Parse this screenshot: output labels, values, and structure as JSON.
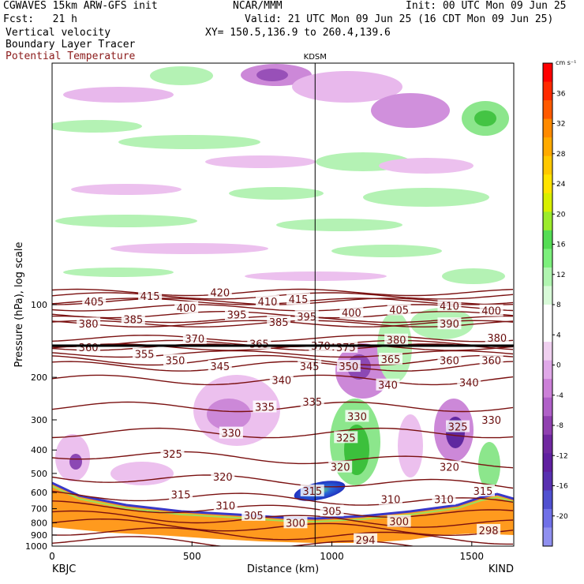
{
  "header": {
    "model": "CGWAVES 15km ARW-GFS init",
    "org": "NCAR/MMM",
    "init": "Init: 00 UTC Mon 09 Jun 25",
    "fcst": "Fcst:   21 h",
    "valid": "Valid: 21 UTC Mon 09 Jun 25 (16 CDT Mon 09 Jun 25)",
    "field1": "Vertical velocity",
    "xy": "XY= 150.5,136.9 to 260.4,139.6",
    "field2": "Boundary Layer Tracer",
    "field3": "Potential Temperature"
  },
  "chart_data": {
    "type": "heatmap",
    "xlabel": "Distance (km)",
    "ylabel": "Pressure (hPa), log scale",
    "xlim": [
      0,
      1650
    ],
    "ylim_pressure_hpa": [
      1000,
      10
    ],
    "y_scale": "log",
    "x_ticks": [
      0,
      500,
      1000,
      1500
    ],
    "y_ticks": [
      100,
      200,
      300,
      400,
      500,
      600,
      700,
      800,
      900,
      1000
    ],
    "station_left": "KBJC",
    "station_right": "KIND",
    "vertical_marker": {
      "label": "KDSM",
      "x_km": 940
    },
    "colorbar": {
      "unit": "cm s⁻¹",
      "labels": [
        36,
        32,
        28,
        24,
        20,
        16,
        12,
        8,
        4,
        0,
        -4,
        -8,
        -12,
        -16,
        -20
      ],
      "colors": [
        "#ff0000",
        "#ff2a00",
        "#ff5a00",
        "#ff8a00",
        "#ffaa00",
        "#ffc800",
        "#ffe400",
        "#d8f000",
        "#9cec2c",
        "#55dd55",
        "#7cf07c",
        "#b0f5b0",
        "#d8fad8",
        "#ffffff",
        "#ffffff",
        "#f0d0f0",
        "#e0a8e8",
        "#cc80d8",
        "#b060c8",
        "#9040b0",
        "#7028a0",
        "#6020a0",
        "#5830b0",
        "#5050d0",
        "#7070e8",
        "#9090f0"
      ]
    },
    "theta_contours": [
      {
        "value": 298,
        "label_x_km": 1560,
        "p_hpa": 860
      },
      {
        "value": 294,
        "label_x_km": 1120,
        "p_hpa": 940
      },
      {
        "value": 300,
        "label": "300",
        "label_x_km": 870,
        "p_hpa": 800
      },
      {
        "value": 305,
        "label_x_km": 720,
        "p_hpa": 745
      },
      {
        "value": 310,
        "label_x_km": 620,
        "p_hpa": 680
      },
      {
        "value": 315,
        "label_x_km": 460,
        "p_hpa": 610
      },
      {
        "value": 320,
        "label_x_km": 610,
        "p_hpa": 515
      },
      {
        "value": 325,
        "label_x_km": 430,
        "p_hpa": 415
      },
      {
        "value": 330,
        "label_x_km": 640,
        "p_hpa": 340
      },
      {
        "value": 335,
        "label_x_km": 760,
        "p_hpa": 265
      },
      {
        "value": 340,
        "label_x_km": 820,
        "p_hpa": 205
      },
      {
        "value": 345,
        "label_x_km": 600,
        "p_hpa": 180
      },
      {
        "value": 350,
        "label_x_km": 440,
        "p_hpa": 170
      },
      {
        "value": 355,
        "label_x_km": 330,
        "p_hpa": 160
      },
      {
        "value": 360,
        "label_x_km": 130,
        "p_hpa": 150
      },
      {
        "value": 365,
        "label_x_km": 740,
        "p_hpa": 145
      },
      {
        "value": 370,
        "label_x_km": 510,
        "p_hpa": 138
      },
      {
        "value": 375,
        "label_x_km": 1050,
        "p_hpa": 150
      },
      {
        "value": 380,
        "label_x_km": 130,
        "p_hpa": 120
      },
      {
        "value": 385,
        "label_x_km": 290,
        "p_hpa": 115
      },
      {
        "value": 390,
        "label_x_km": 1420,
        "p_hpa": 120
      },
      {
        "value": 395,
        "label_x_km": 660,
        "p_hpa": 110
      },
      {
        "value": 400,
        "label_x_km": 480,
        "p_hpa": 103
      },
      {
        "value": 405,
        "label_x_km": 150,
        "p_hpa": 97
      },
      {
        "value": 410,
        "label_x_km": 770,
        "p_hpa": 97
      },
      {
        "value": 415,
        "label_x_km": 350,
        "p_hpa": 92
      },
      {
        "value": 420,
        "label_x_km": 600,
        "p_hpa": 89
      }
    ],
    "theta_extra_labels": [
      {
        "text": "415",
        "x_km": 880,
        "p_hpa": 95
      },
      {
        "text": "385",
        "x_km": 810,
        "p_hpa": 118
      },
      {
        "text": "395",
        "x_km": 910,
        "p_hpa": 112
      },
      {
        "text": "400",
        "x_km": 1070,
        "p_hpa": 108
      },
      {
        "text": "405",
        "x_km": 1240,
        "p_hpa": 105
      },
      {
        "text": "410",
        "x_km": 1420,
        "p_hpa": 101
      },
      {
        "text": "400",
        "x_km": 1570,
        "p_hpa": 106
      },
      {
        "text": "380",
        "x_km": 1230,
        "p_hpa": 140
      },
      {
        "text": "380",
        "x_km": 1590,
        "p_hpa": 137
      },
      {
        "text": "370",
        "x_km": 960,
        "p_hpa": 148
      },
      {
        "text": "365",
        "x_km": 1210,
        "p_hpa": 168
      },
      {
        "text": "360",
        "x_km": 1420,
        "p_hpa": 170
      },
      {
        "text": "360",
        "x_km": 1570,
        "p_hpa": 170
      },
      {
        "text": "350",
        "x_km": 1060,
        "p_hpa": 180
      },
      {
        "text": "345",
        "x_km": 920,
        "p_hpa": 180
      },
      {
        "text": "340",
        "x_km": 1200,
        "p_hpa": 215
      },
      {
        "text": "340",
        "x_km": 1490,
        "p_hpa": 210
      },
      {
        "text": "335",
        "x_km": 930,
        "p_hpa": 252
      },
      {
        "text": "330",
        "x_km": 1090,
        "p_hpa": 290
      },
      {
        "text": "330",
        "x_km": 1570,
        "p_hpa": 300
      },
      {
        "text": "325",
        "x_km": 1050,
        "p_hpa": 355
      },
      {
        "text": "325",
        "x_km": 1450,
        "p_hpa": 320
      },
      {
        "text": "320",
        "x_km": 1030,
        "p_hpa": 470
      },
      {
        "text": "320",
        "x_km": 1420,
        "p_hpa": 470
      },
      {
        "text": "315",
        "x_km": 1540,
        "p_hpa": 590
      },
      {
        "text": "315",
        "x_km": 930,
        "p_hpa": 590
      },
      {
        "text": "310",
        "x_km": 1210,
        "p_hpa": 640
      },
      {
        "text": "310",
        "x_km": 1400,
        "p_hpa": 640
      },
      {
        "text": "305",
        "x_km": 1000,
        "p_hpa": 715
      },
      {
        "text": "300",
        "x_km": 1240,
        "p_hpa": 790
      }
    ]
  }
}
